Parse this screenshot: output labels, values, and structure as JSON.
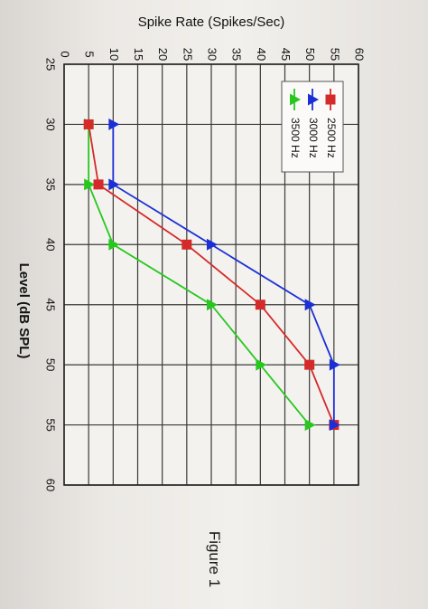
{
  "caption": "Figure 1",
  "colors": {
    "background": "#efece8",
    "grid": "#3a3a3a",
    "axis": "#222222",
    "text": "#111111",
    "series_2500": "#d42a2a",
    "series_3000": "#1a2fd6",
    "series_3500": "#26c81e"
  },
  "chart_data": {
    "type": "line",
    "orientation": "rotated-90",
    "title": "",
    "xlabel": "Level (dB SPL)",
    "ylabel": "Spike Rate (Spikes/Sec)",
    "xlim": [
      25,
      60
    ],
    "ylim": [
      0,
      60
    ],
    "x_ticks": [
      "25",
      "30",
      "35",
      "40",
      "45",
      "50",
      "55",
      "60"
    ],
    "y_ticks": [
      "0",
      "5",
      "10",
      "15",
      "20",
      "25",
      "30",
      "35",
      "40",
      "45",
      "50",
      "55",
      "60"
    ],
    "grid": true,
    "legend_position": "top-left",
    "series": [
      {
        "name": "2500 Hz",
        "marker": "square",
        "color": "#d42a2a",
        "x": [
          30,
          35,
          40,
          45,
          50,
          55
        ],
        "y": [
          5,
          7,
          25,
          40,
          50,
          55
        ]
      },
      {
        "name": "3000 Hz",
        "marker": "triangle",
        "color": "#1a2fd6",
        "x": [
          30,
          35,
          40,
          45,
          50,
          55
        ],
        "y": [
          10,
          10,
          30,
          50,
          55,
          55
        ]
      },
      {
        "name": "3500 Hz",
        "marker": "triangle",
        "color": "#26c81e",
        "x": [
          30,
          35,
          40,
          45,
          50,
          55
        ],
        "y": [
          5,
          5,
          10,
          30,
          40,
          50
        ]
      }
    ]
  }
}
